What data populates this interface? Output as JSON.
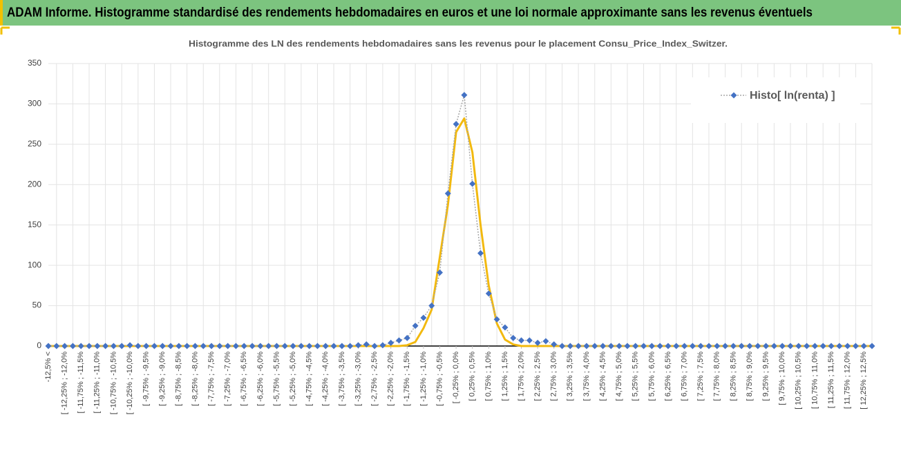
{
  "header": {
    "title": "ADAM Informe. Histogramme standardisé des rendements hebdomadaires en euros et une loi normale approximante sans les revenus éventuels"
  },
  "chart_data": {
    "type": "line",
    "title": "Histogramme des LN des rendements hebdomadaires sans les revenus pour le placement Consu_Price_Index_Switzer.",
    "categories": [
      "-12,5% <",
      null,
      "[ -12,25% ; -12,0%",
      null,
      "[ -11,75% ; -11,5%",
      null,
      "[ -11,25% ; -11,0%",
      null,
      "[ -10,75% ; -10,5%",
      null,
      "[ -10,25% ; -10,0%",
      null,
      "[ -9,75% ; -9,5%",
      null,
      "[ -9,25% ; -9,0%",
      null,
      "[ -8,75% ; -8,5%",
      null,
      "[ -8,25% ; -8,0%",
      null,
      "[ -7,75% ; -7,5%",
      null,
      "[ -7,25% ; -7,0%",
      null,
      "[ -6,75% ; -6,5%",
      null,
      "[ -6,25% ; -6,0%",
      null,
      "[ -5,75% ; -5,5%",
      null,
      "[ -5,25% ; -5,0%",
      null,
      "[ -4,75% ; -4,5%",
      null,
      "[ -4,25% ; -4,0%",
      null,
      "[ -3,75% ; -3,5%",
      null,
      "[ -3,25% ; -3,0%",
      null,
      "[ -2,75% ; -2,5%",
      null,
      "[ -2,25% ; -2,0%",
      null,
      "[ -1,75% ; -1,5%",
      null,
      "[ -1,25% ; -1,0%",
      null,
      "[ -0,75% ; -0,5%",
      null,
      "[ -0,25% ; 0,0%",
      null,
      "[ 0,25% ; 0,5%",
      null,
      "[ 0,75% ; 1,0%",
      null,
      "[ 1,25% ; 1,5%",
      null,
      "[ 1,75% ; 2,0%",
      null,
      "[ 2,25% ; 2,5%",
      null,
      "[ 2,75% ; 3,0%",
      null,
      "[ 3,25% ; 3,5%",
      null,
      "[ 3,75% ; 4,0%",
      null,
      "[ 4,25% ; 4,5%",
      null,
      "[ 4,75% ; 5,0%",
      null,
      "[ 5,25% ; 5,5%",
      null,
      "[ 5,75% ; 6,0%",
      null,
      "[ 6,25% ; 6,5%",
      null,
      "[ 6,75% ; 7,0%",
      null,
      "[ 7,25% ; 7,5%",
      null,
      "[ 7,75% ; 8,0%",
      null,
      "[ 8,25% ; 8,5%",
      null,
      "[ 8,75% ; 9,0%",
      null,
      "[ 9,25% ; 9,5%",
      null,
      "[ 9,75% ; 10,0%",
      null,
      "[ 10,25% ; 10,5%",
      null,
      "[ 10,75% ; 11,0%",
      null,
      "[ 11,25% ; 11,5%",
      null,
      "[ 11,75% ; 12,0%",
      null,
      "[ 12,25% ; 12,5%",
      null
    ],
    "series": [
      {
        "name": "Histo[ ln(renta) ]",
        "color": "#4472c4",
        "values": [
          0,
          0,
          0,
          0,
          0,
          0,
          0,
          0,
          0,
          0,
          1,
          0,
          0,
          0,
          0,
          0,
          0,
          0,
          0,
          0,
          0,
          0,
          0,
          0,
          0,
          0,
          0,
          0,
          0,
          0,
          0,
          0,
          0,
          0,
          0,
          0,
          0,
          0,
          1,
          2,
          0,
          1,
          4,
          7,
          10,
          25,
          35,
          50,
          91,
          189,
          275,
          311,
          201,
          115,
          65,
          33,
          23,
          10,
          7,
          7,
          4,
          6,
          2,
          0,
          0,
          0,
          0,
          0,
          0,
          0,
          0,
          0,
          0,
          0,
          0,
          0,
          0,
          0,
          0,
          0,
          0,
          0,
          0,
          0,
          0,
          0,
          0,
          0,
          0,
          0,
          0,
          0,
          0,
          0,
          0,
          0,
          0,
          0,
          0,
          0,
          0,
          0
        ]
      },
      {
        "color": "#f2b90f",
        "values": [
          0,
          0,
          0,
          0,
          0,
          0,
          0,
          0,
          0,
          0,
          0,
          0,
          0,
          0,
          0,
          0,
          0,
          0,
          0,
          0,
          0,
          0,
          0,
          0,
          0,
          0,
          0,
          0,
          0,
          0,
          0,
          0,
          0,
          0,
          0,
          0,
          0,
          0,
          0,
          0,
          0,
          0,
          0,
          0,
          1,
          5,
          22,
          45,
          110,
          175,
          265,
          282,
          240,
          150,
          75,
          28,
          8,
          2,
          0,
          0,
          0,
          0,
          0,
          0,
          0,
          0,
          0,
          0,
          0,
          0,
          0,
          0,
          0,
          0,
          0,
          0,
          0,
          0,
          0,
          0,
          0,
          0,
          0,
          0,
          0,
          0,
          0,
          0,
          0,
          0,
          0,
          0,
          0,
          0,
          0,
          0,
          0,
          0,
          0,
          0,
          0,
          0
        ]
      }
    ],
    "ylim": [
      0,
      350
    ],
    "yticks": [
      0,
      50,
      100,
      150,
      200,
      250,
      300,
      350
    ],
    "grid": true,
    "legend": "top-right"
  }
}
